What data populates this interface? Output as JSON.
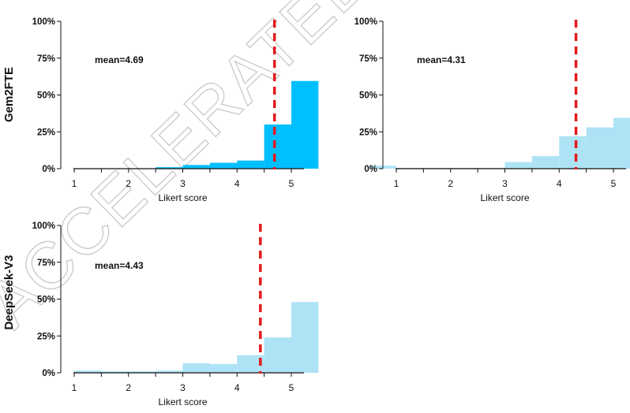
{
  "watermark": "ACCELERATED ARTICLE PREVIEW",
  "chart_data": [
    {
      "type": "bar",
      "row_label": "Gem2FTE",
      "mean_label": "mean=4.69",
      "mean": 4.69,
      "xlabel": "Likert score",
      "xticks": [
        "1",
        "2",
        "3",
        "4",
        "5"
      ],
      "yticks": [
        "0%",
        "25%",
        "50%",
        "75%",
        "100%"
      ],
      "ylim": [
        0,
        100
      ],
      "bins": [
        {
          "x0": 1.0,
          "x1": 1.5,
          "y": 0
        },
        {
          "x0": 1.5,
          "x1": 2.0,
          "y": 0
        },
        {
          "x0": 2.0,
          "x1": 2.5,
          "y": 0
        },
        {
          "x0": 2.5,
          "x1": 3.0,
          "y": 1
        },
        {
          "x0": 3.0,
          "x1": 3.5,
          "y": 2.5
        },
        {
          "x0": 3.5,
          "x1": 4.0,
          "y": 4
        },
        {
          "x0": 4.0,
          "x1": 4.5,
          "y": 5.5
        },
        {
          "x0": 4.5,
          "x1": 5.0,
          "y": 30
        },
        {
          "x0": 5.0,
          "x1": 5.5,
          "y": 59.5
        }
      ],
      "color": "#00bfff"
    },
    {
      "type": "bar",
      "row_label": "",
      "mean_label": "mean=4.31",
      "mean": 4.31,
      "xlabel": "Likert score",
      "xticks": [
        "1",
        "2",
        "3",
        "4",
        "5"
      ],
      "yticks": [
        "0%",
        "25%",
        "50%",
        "75%",
        "100%"
      ],
      "ylim": [
        0,
        100
      ],
      "bins": [
        {
          "x0": 0.5,
          "x1": 1.0,
          "y": 2
        },
        {
          "x0": 1.0,
          "x1": 1.5,
          "y": 0.5
        },
        {
          "x0": 1.5,
          "x1": 2.0,
          "y": 0.5
        },
        {
          "x0": 2.0,
          "x1": 2.5,
          "y": 0.5
        },
        {
          "x0": 2.5,
          "x1": 3.0,
          "y": 0.5
        },
        {
          "x0": 3.0,
          "x1": 3.5,
          "y": 4.5
        },
        {
          "x0": 3.5,
          "x1": 4.0,
          "y": 8.5
        },
        {
          "x0": 4.0,
          "x1": 4.5,
          "y": 22
        },
        {
          "x0": 4.5,
          "x1": 5.0,
          "y": 28
        },
        {
          "x0": 5.0,
          "x1": 5.5,
          "y": 34.5
        }
      ],
      "color": "#aee3f6"
    },
    {
      "type": "bar",
      "row_label": "DeepSeek-V3",
      "mean_label": "mean=4.43",
      "mean": 4.43,
      "xlabel": "Likert score",
      "xticks": [
        "1",
        "2",
        "3",
        "4",
        "5"
      ],
      "yticks": [
        "0%",
        "25%",
        "50%",
        "75%",
        "100%"
      ],
      "ylim": [
        0,
        100
      ],
      "bins": [
        {
          "x0": 1.0,
          "x1": 1.5,
          "y": 1.5
        },
        {
          "x0": 1.5,
          "x1": 2.0,
          "y": 1
        },
        {
          "x0": 2.0,
          "x1": 2.5,
          "y": 1
        },
        {
          "x0": 2.5,
          "x1": 3.0,
          "y": 1.5
        },
        {
          "x0": 3.0,
          "x1": 3.5,
          "y": 6.5
        },
        {
          "x0": 3.5,
          "x1": 4.0,
          "y": 6
        },
        {
          "x0": 4.0,
          "x1": 4.5,
          "y": 12
        },
        {
          "x0": 4.5,
          "x1": 5.0,
          "y": 24
        },
        {
          "x0": 5.0,
          "x1": 5.5,
          "y": 48
        }
      ],
      "color": "#aee3f6"
    }
  ],
  "colors": {
    "mean_line": "#e31a1c",
    "axis": "#111111"
  }
}
